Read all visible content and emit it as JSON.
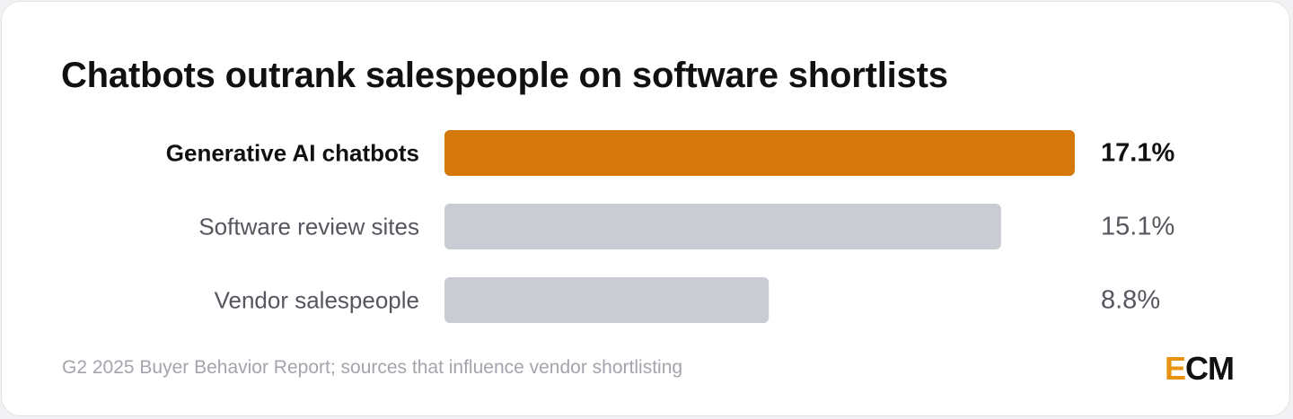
{
  "chart_data": {
    "type": "bar",
    "orientation": "horizontal",
    "title": "Chatbots outrank salespeople on software shortlists",
    "categories": [
      "Generative AI chatbots",
      "Software review sites",
      "Vendor salespeople"
    ],
    "values": [
      17.1,
      15.1,
      8.8
    ],
    "value_labels": [
      "17.1%",
      "15.1%",
      "8.8%"
    ],
    "highlight_index": 0,
    "colors": {
      "highlight": "#d4780b",
      "default": "#c9ccd2",
      "highlight_label": "#111111",
      "default_label": "#55575e"
    },
    "xlim": [
      0,
      17.1
    ],
    "grid": false,
    "legend": "none"
  },
  "footer": {
    "source": "G2 2025 Buyer Behavior Report; sources that influence vendor shortlisting",
    "logo_e": "E",
    "logo_cm": "CM"
  },
  "brand": {
    "accent": "#e8930f"
  }
}
